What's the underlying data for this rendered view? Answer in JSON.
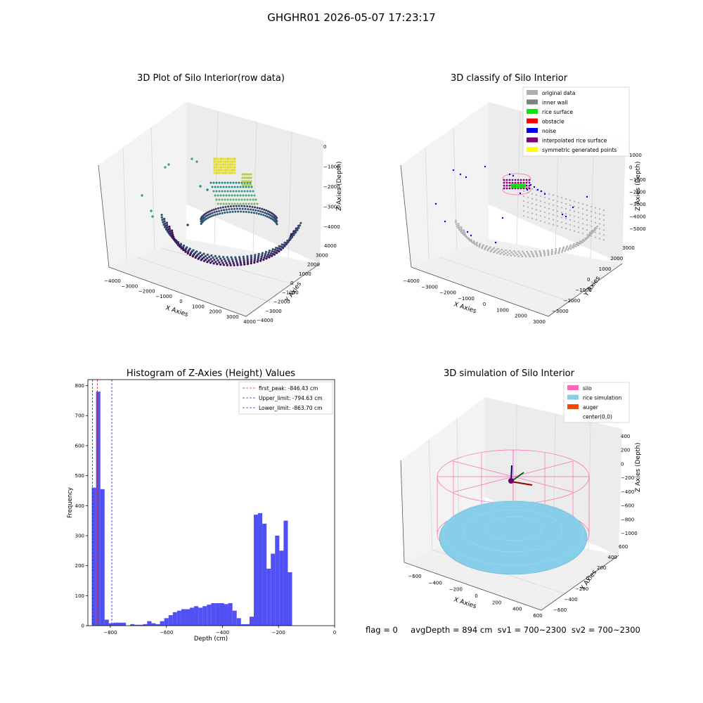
{
  "figure": {
    "title": "GHGHR01 2026-05-07 17:23:17",
    "status": {
      "flag": "flag = 0",
      "avg_depth": "avgDepth = 894 cm",
      "sv1": "sv1 = 700~2300",
      "sv2": "sv2 = 700~2300"
    }
  },
  "chart_data": [
    {
      "type": "scatter",
      "projection": "3d",
      "title": "3D Plot of Silo Interior(row data)",
      "xlabel": "X Axies",
      "ylabel": "Y Axies",
      "zlabel": "Z Axies (Depth)",
      "xticks": [
        "−4000",
        "−3000",
        "−2000",
        "−1000",
        "0",
        "1000",
        "2000",
        "3000",
        "4000"
      ],
      "yticks": [
        "−4000",
        "−3000",
        "−2000",
        "−1000",
        "0",
        "1000",
        "2000",
        "3000",
        "4000"
      ],
      "zticks": [
        "0",
        "−1000",
        "−2000",
        "−3000",
        "−4000"
      ],
      "colormap": "viridis",
      "colors": {
        "low": "#440154",
        "mid": "#21918c",
        "high": "#fde725"
      }
    },
    {
      "type": "scatter",
      "projection": "3d",
      "title": "3D classify of Silo Interior",
      "xlabel": "X Axies",
      "ylabel": "Y Axies",
      "zlabel": "Z Axies (Depth)",
      "xticks": [
        "−4000",
        "−3000",
        "−2000",
        "−1000",
        "0",
        "1000",
        "2000",
        "3000"
      ],
      "yticks": [
        "−3000",
        "−2000",
        "−1000",
        "0",
        "1000",
        "2000",
        "3000"
      ],
      "zticks": [
        "1000",
        "0",
        "−1000",
        "−2000",
        "−3000",
        "−4000",
        "−5000"
      ],
      "legend": [
        {
          "label": "original data",
          "color": "#b0b0b0"
        },
        {
          "label": "inner wall",
          "color": "#808080"
        },
        {
          "label": "rice surface",
          "color": "#00ee00"
        },
        {
          "label": "obstacle",
          "color": "#ff0000"
        },
        {
          "label": "noise",
          "color": "#0000ee"
        },
        {
          "label": "interpolated rice surface",
          "color": "#800080"
        },
        {
          "label": "symmetric generated points",
          "color": "#ffff00"
        }
      ],
      "legend_position": "top-right"
    },
    {
      "type": "bar",
      "title": "Histogram of Z-Axies (Height) Values",
      "xlabel": "Depth (cm)",
      "ylabel": "Frequency",
      "xlim": [
        -880,
        0
      ],
      "ylim": [
        0,
        820
      ],
      "xticks": [
        -800,
        -600,
        -400,
        -200,
        0
      ],
      "yticks": [
        0,
        100,
        200,
        300,
        400,
        500,
        600,
        700,
        800
      ],
      "bar_color": "#5050f5",
      "bin_edges_start": -866,
      "bin_width": 15.2,
      "values": [
        460,
        780,
        455,
        20,
        8,
        10,
        10,
        10,
        0,
        5,
        3,
        3,
        5,
        15,
        8,
        5,
        15,
        25,
        35,
        45,
        50,
        55,
        55,
        60,
        65,
        60,
        65,
        70,
        75,
        75,
        75,
        72,
        75,
        50,
        25,
        5,
        5,
        30,
        370,
        375,
        340,
        190,
        240,
        300,
        250,
        350,
        178
      ],
      "reference_lines": [
        {
          "label": "first_peak: -846.43 cm",
          "value": -846.43,
          "color": "#e02020"
        },
        {
          "label": "Upper_limit: -794.63 cm",
          "value": -794.63,
          "color": "#2020e0"
        },
        {
          "label": "Lower_limit: -863.70 cm",
          "value": -863.7,
          "color": "#2020e0"
        }
      ],
      "legend_position": "top-right"
    },
    {
      "type": "scatter",
      "projection": "3d",
      "title": "3D simulation of Silo Interior",
      "xlabel": "X Axies",
      "ylabel": "Y Axies",
      "zlabel": "Z Axies (Depth)",
      "xticks": [
        "−600",
        "−400",
        "−200",
        "0",
        "200",
        "400",
        "600"
      ],
      "yticks": [
        "−600",
        "−400",
        "−200",
        "0",
        "200",
        "400",
        "600"
      ],
      "zticks": [
        "400",
        "200",
        "0",
        "−200",
        "−400",
        "−600",
        "−800",
        "−1000"
      ],
      "legend": [
        {
          "label": "silo",
          "color": "#ff69b4"
        },
        {
          "label": "rice simulation",
          "color": "#87ceeb"
        },
        {
          "label": "auger",
          "color": "#ff4500"
        },
        {
          "label": "center(0,0)",
          "color": ""
        }
      ],
      "legend_position": "top-right"
    }
  ]
}
